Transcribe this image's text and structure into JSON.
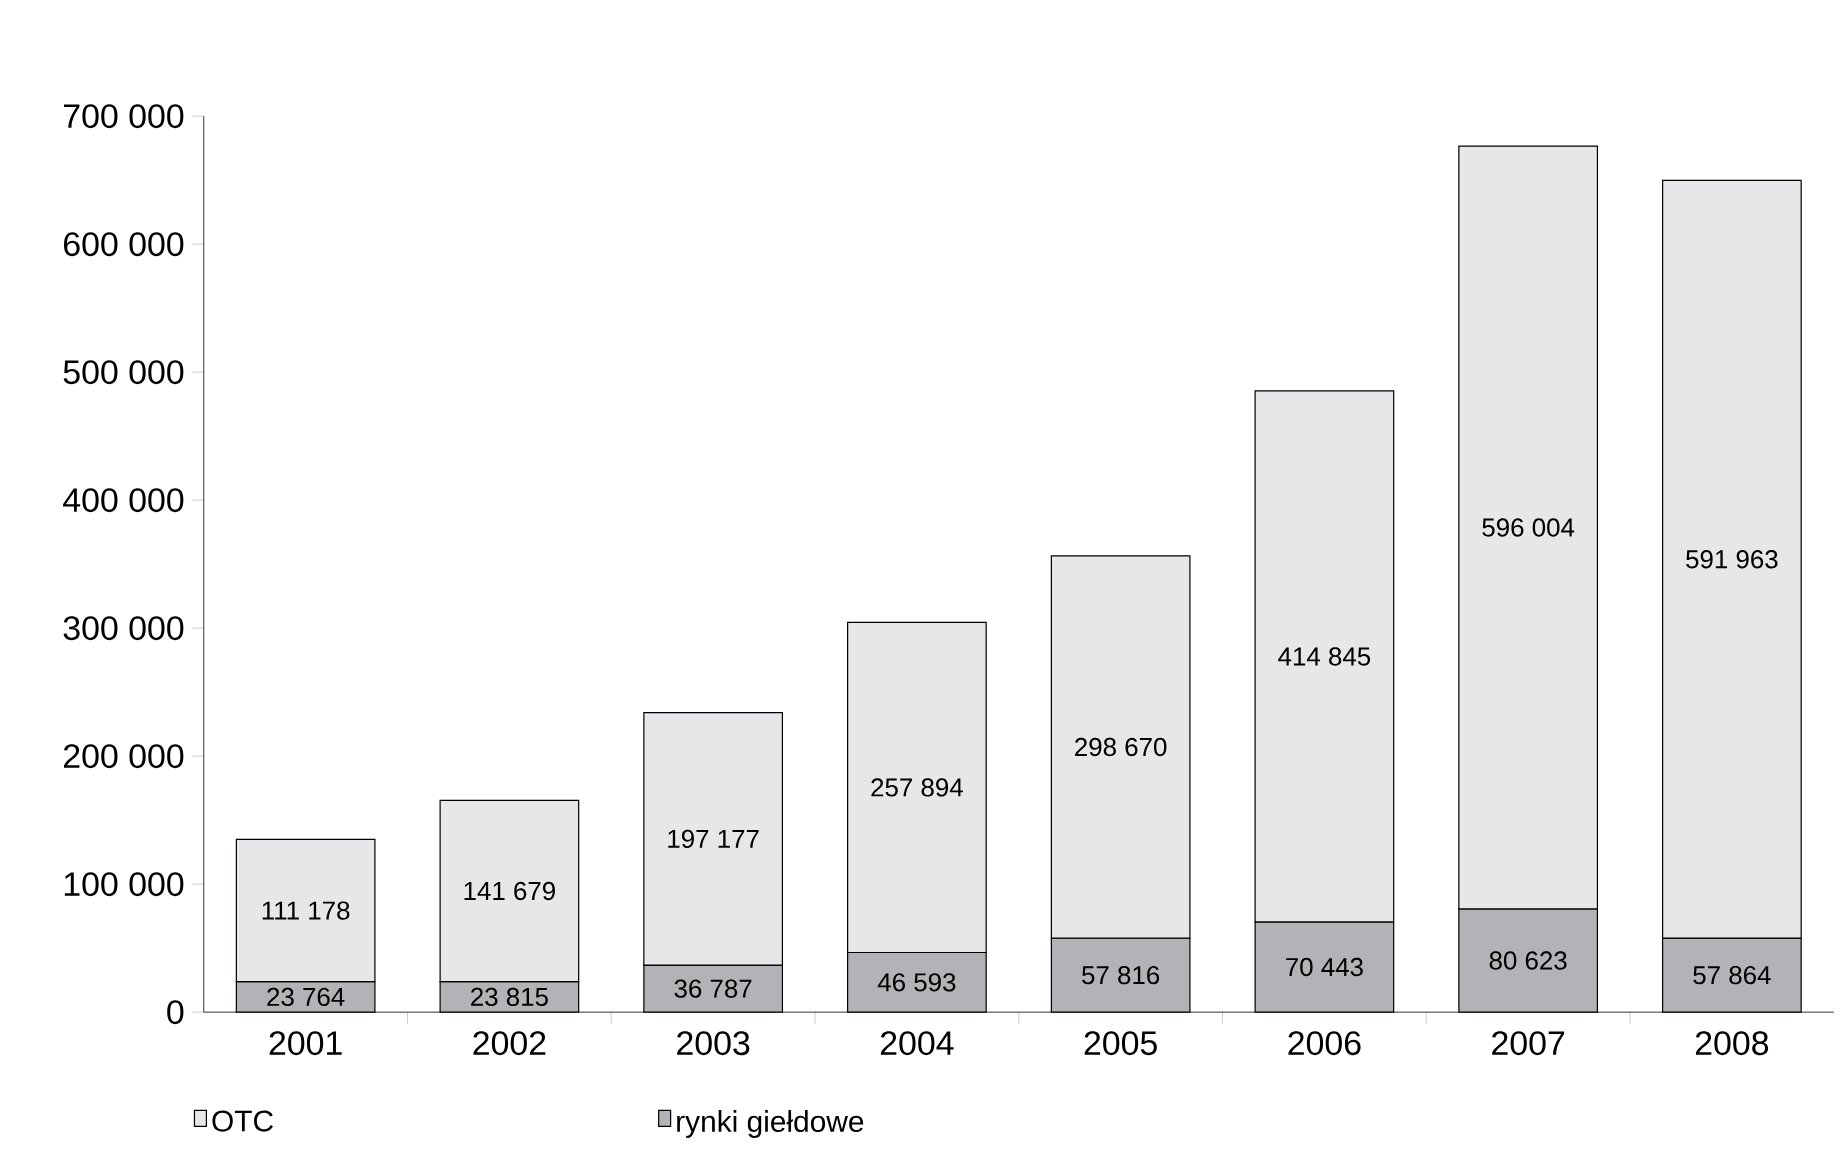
{
  "chart_data": {
    "type": "bar",
    "stacked": true,
    "categories": [
      "2001",
      "2002",
      "2003",
      "2004",
      "2005",
      "2006",
      "2007",
      "2008"
    ],
    "series": [
      {
        "name": "rynki giełdowe",
        "color": "#b1b3b6",
        "values": [
          23764,
          23815,
          36787,
          46593,
          57816,
          70443,
          80623,
          57864
        ],
        "value_labels": [
          "23 764",
          "23 815",
          "36 787",
          "46 593",
          "57 816",
          "70 443",
          "80 623",
          "57 864"
        ]
      },
      {
        "name": "OTC",
        "color": "#e6e7e8",
        "values": [
          111178,
          141679,
          197177,
          257894,
          298670,
          414845,
          596004,
          591963
        ],
        "value_labels": [
          "111 178",
          "141 679",
          "197 177",
          "257 894",
          "298 670",
          "414 845",
          "596 004",
          "591 963"
        ]
      }
    ],
    "ylim": [
      0,
      700000
    ],
    "yticks": [
      0,
      {
        "value": 100000,
        "label": "100 000"
      },
      {
        "value": 200000,
        "label": "200 000"
      },
      {
        "value": 300000,
        "label": "300 000"
      },
      {
        "value": 400000,
        "label": "400 000"
      },
      {
        "value": 500000,
        "label": "500 000"
      },
      {
        "value": 600000,
        "label": "600 000"
      },
      {
        "value": 700000,
        "label": "700 000"
      }
    ],
    "legend": "bottom",
    "grid": false
  }
}
